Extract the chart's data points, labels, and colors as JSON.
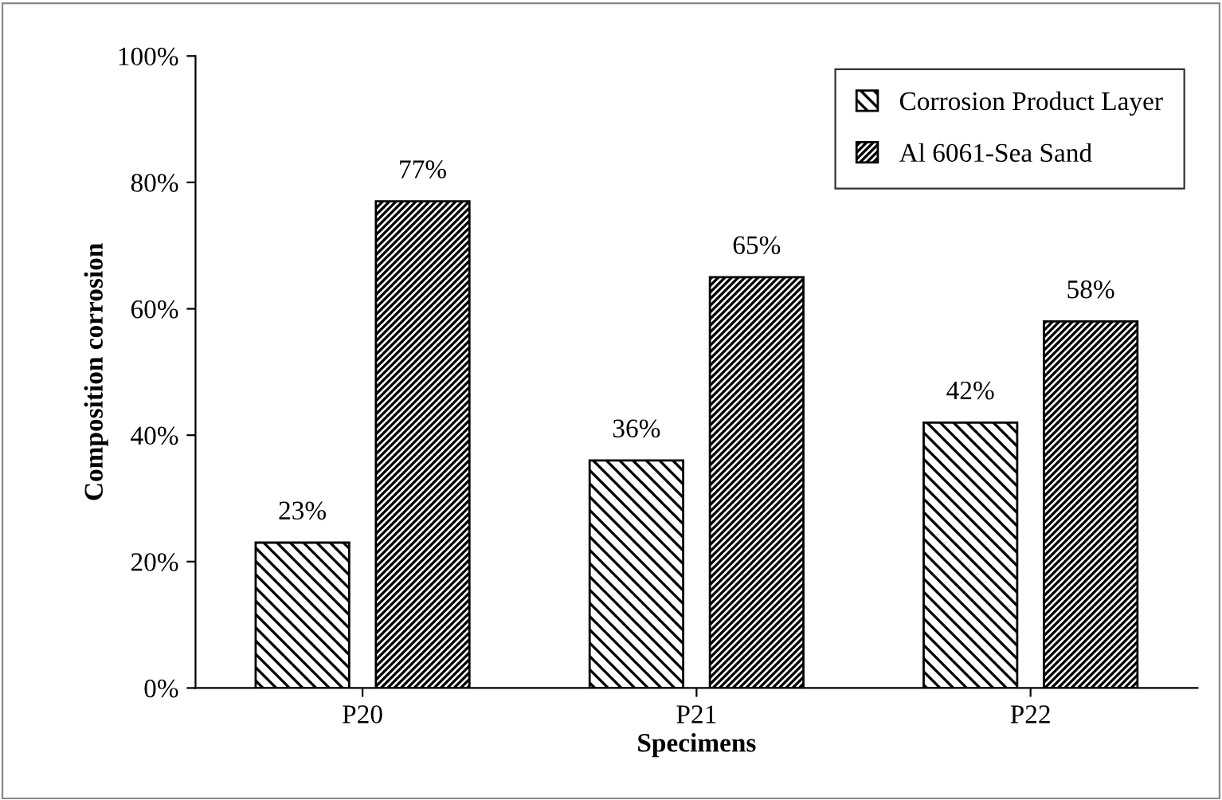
{
  "chart_data": {
    "type": "bar",
    "xlabel": "Specimens",
    "ylabel": "Composition corrosion",
    "categories": [
      "P20",
      "P21",
      "P22"
    ],
    "series": [
      {
        "name": "Corrosion Product Layer",
        "color": "#000000",
        "values": [
          23,
          36,
          42
        ],
        "value_labels": [
          "23%",
          "36%",
          "42%"
        ]
      },
      {
        "name": "Al 6061-Sea Sand",
        "color": "#000000",
        "values": [
          77,
          65,
          58
        ],
        "value_labels": [
          "77%",
          "65%",
          "58%"
        ]
      }
    ],
    "ylim": [
      0,
      100
    ],
    "yticks": [
      {
        "value": 0,
        "label": "0%"
      },
      {
        "value": 20,
        "label": "20%"
      },
      {
        "value": 40,
        "label": "40%"
      },
      {
        "value": 60,
        "label": "60%"
      },
      {
        "value": 80,
        "label": "80%"
      },
      {
        "value": 100,
        "label": "100%"
      }
    ],
    "grid": false,
    "legend": "top right"
  }
}
